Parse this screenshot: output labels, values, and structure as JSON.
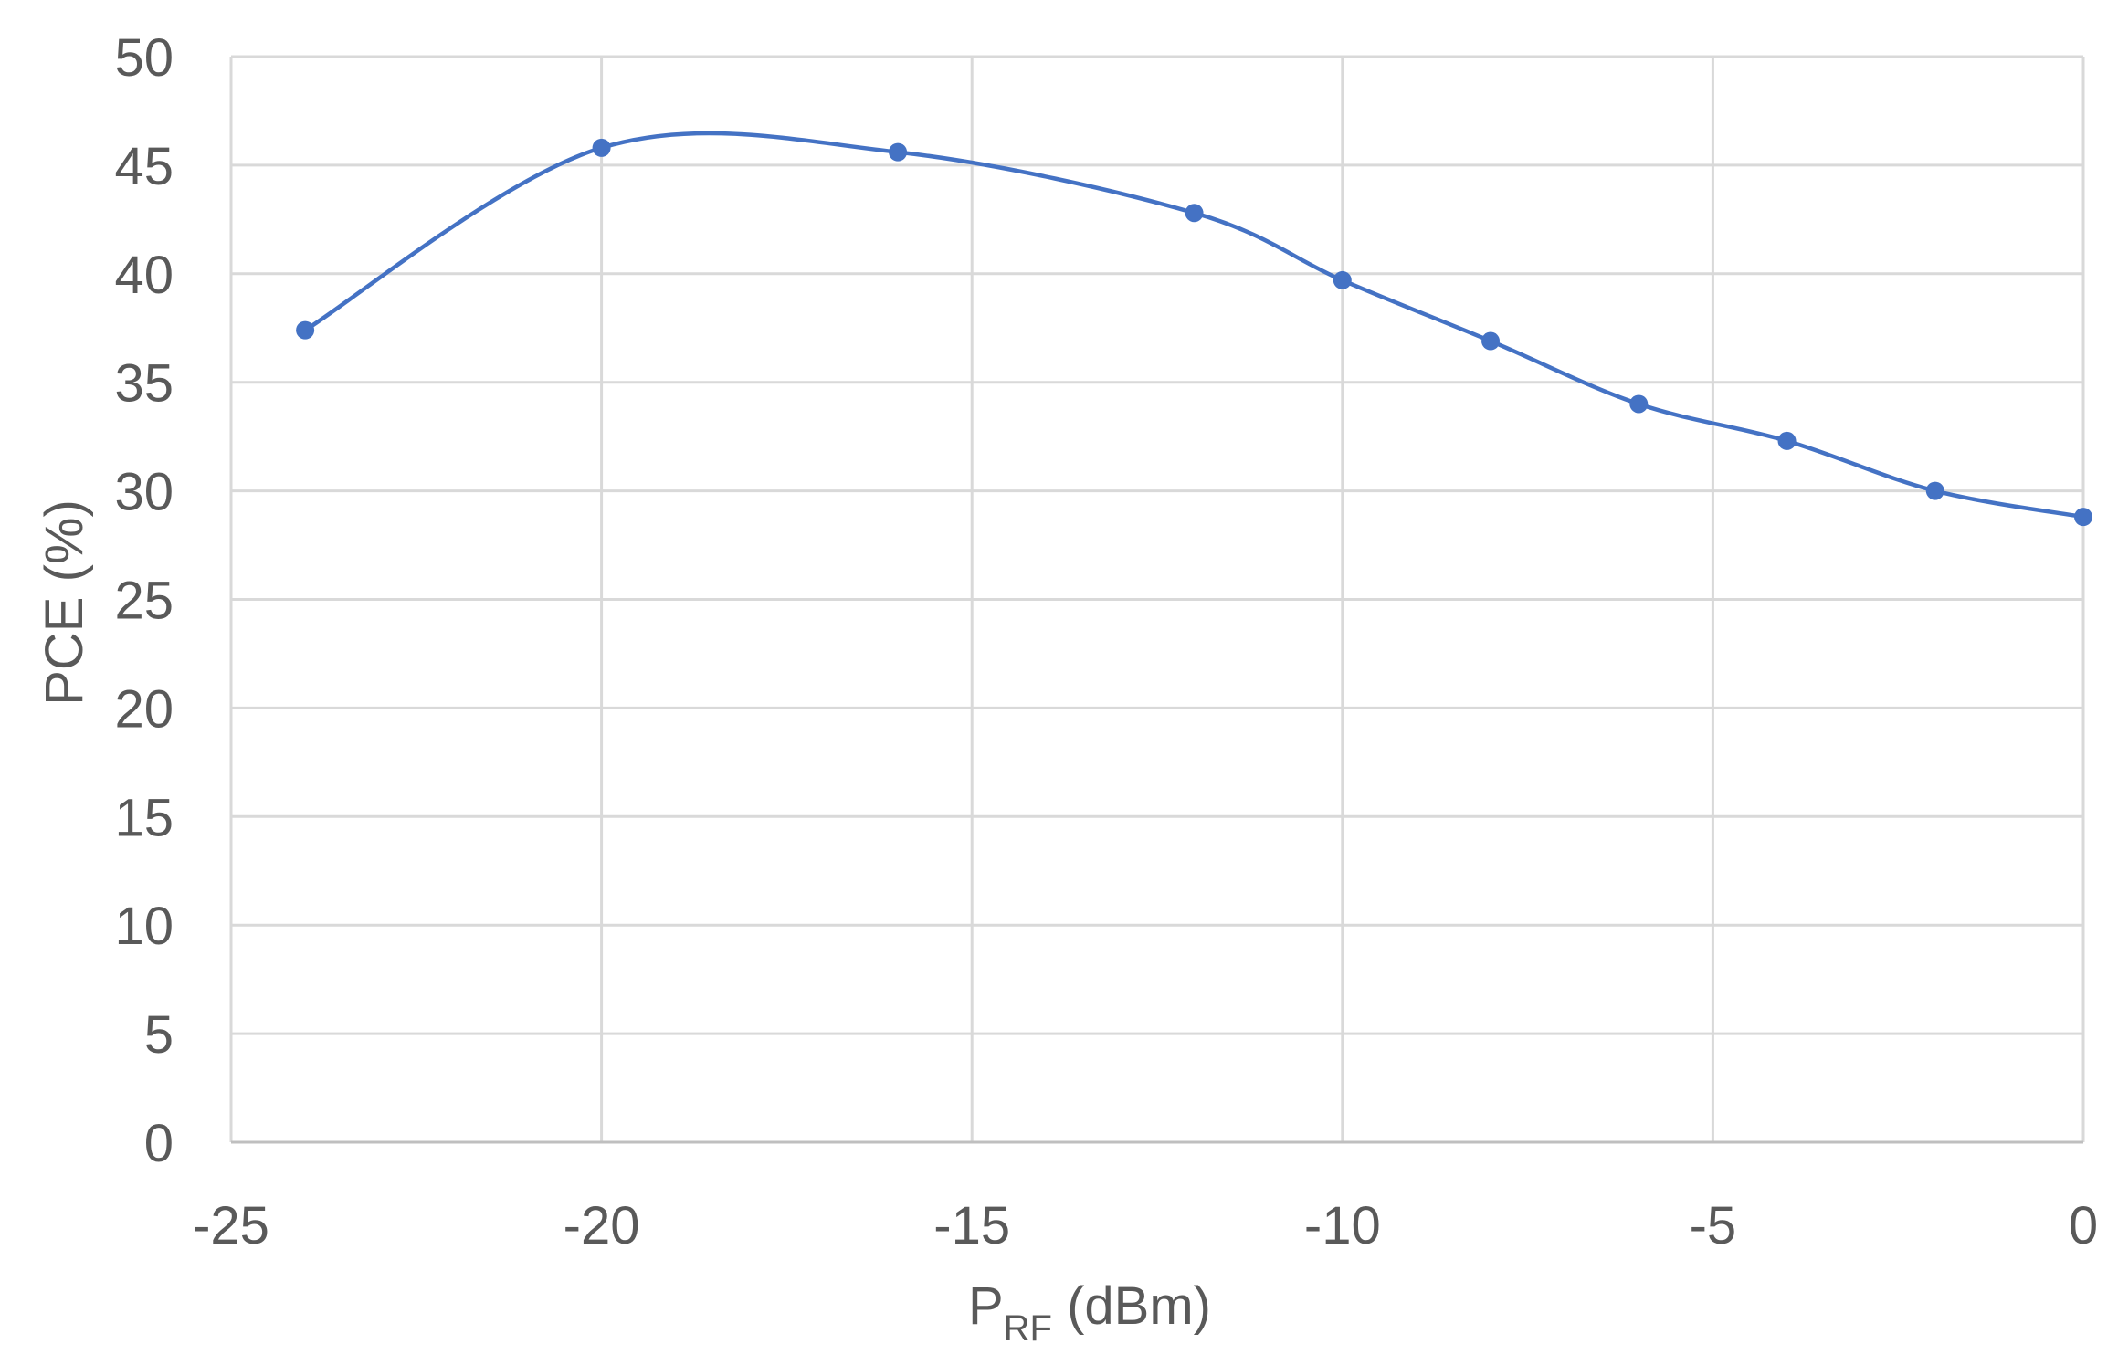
{
  "chart_data": {
    "type": "line",
    "smooth": true,
    "title": "",
    "xlabel": {
      "main": "P",
      "subscript": "RF",
      "suffix": " (dBm)"
    },
    "ylabel": "PCE (%)",
    "xlim": [
      -25,
      0
    ],
    "ylim": [
      0,
      50
    ],
    "xticks": [
      -25,
      -20,
      -15,
      -10,
      -5,
      0
    ],
    "yticks": [
      0,
      5,
      10,
      15,
      20,
      25,
      30,
      35,
      40,
      45,
      50
    ],
    "grid": true,
    "legend": "none",
    "series": [
      {
        "name": "PCE",
        "color": "#4472C4",
        "x": [
          -24,
          -20,
          -16,
          -12,
          -10,
          -8,
          -6,
          -4,
          -2,
          0
        ],
        "y": [
          37.4,
          45.8,
          45.6,
          42.8,
          39.7,
          36.9,
          34.0,
          32.3,
          30.0,
          28.8
        ]
      }
    ]
  }
}
